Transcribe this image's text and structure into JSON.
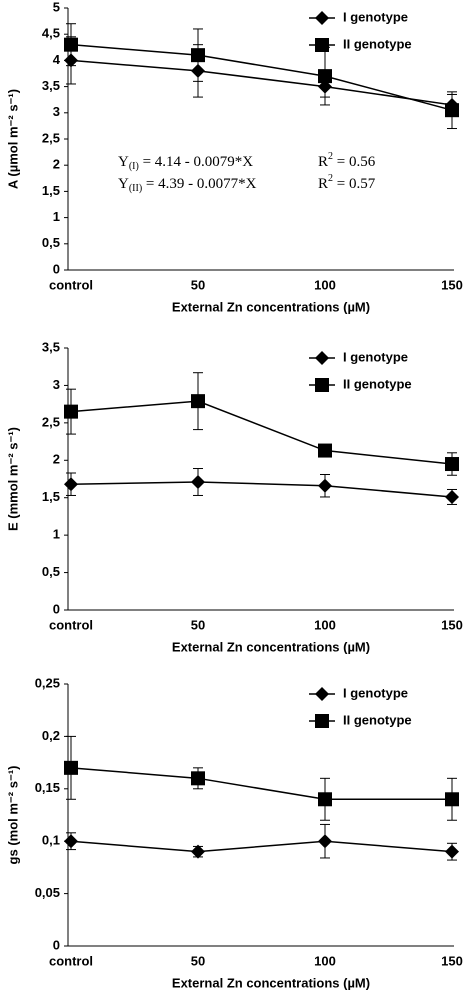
{
  "chart_data": [
    {
      "type": "line",
      "ylabel": "A (µmol m⁻² s⁻¹)",
      "xlabel": "External Zn concentrations (µM)",
      "categories": [
        "control",
        "50",
        "100",
        "150"
      ],
      "ylim": [
        0,
        5
      ],
      "yticks": [
        0,
        {
          "value": 0.5,
          "label": "0,5"
        },
        1,
        {
          "value": 1.5,
          "label": "1,5"
        },
        2,
        {
          "value": 2.5,
          "label": "2,5"
        },
        3,
        {
          "value": 3.5,
          "label": "3,5"
        },
        4,
        {
          "value": 4.5,
          "label": "4,5"
        },
        5
      ],
      "legend": "upper right",
      "series": [
        {
          "name": "I genotype",
          "color": "#000000",
          "marker": "diamond",
          "values": [
            4.0,
            3.8,
            3.5,
            3.15
          ],
          "errors": [
            0.45,
            0.5,
            0.2,
            0.2
          ]
        },
        {
          "name": "II genotype",
          "color": "#000000",
          "marker": "square",
          "values": [
            4.3,
            4.1,
            3.7,
            3.05
          ],
          "errors": [
            0.4,
            0.5,
            0.55,
            0.35
          ]
        }
      ],
      "annotations": [
        [
          {
            "text": "Y"
          },
          {
            "text": "(I)",
            "sub": true
          },
          {
            "text": " = 4.14 - 0.0079*X"
          }
        ],
        [
          {
            "text": "Y"
          },
          {
            "text": "(II)",
            "sub": true
          },
          {
            "text": " = 4.39 - 0.0077*X"
          }
        ],
        [
          {
            "text": "R"
          },
          {
            "text": "2",
            "sup": true
          },
          {
            "text": " = 0.56"
          }
        ],
        [
          {
            "text": "R"
          },
          {
            "text": "2",
            "sup": true
          },
          {
            "text": " = 0.57"
          }
        ]
      ]
    },
    {
      "type": "line",
      "ylabel": "E (mmol m⁻² s⁻¹)",
      "xlabel": "External Zn concentrations (µM)",
      "categories": [
        "control",
        "50",
        "100",
        "150"
      ],
      "ylim": [
        0,
        3.5
      ],
      "yticks": [
        0,
        {
          "value": 0.5,
          "label": "0,5"
        },
        1,
        {
          "value": 1.5,
          "label": "1,5"
        },
        2,
        {
          "value": 2.5,
          "label": "2,5"
        },
        3,
        {
          "value": 3.5,
          "label": "3,5"
        }
      ],
      "legend": "upper right",
      "series": [
        {
          "name": "I genotype",
          "color": "#000000",
          "marker": "diamond",
          "values": [
            1.68,
            1.71,
            1.66,
            1.51
          ],
          "errors": [
            0.15,
            0.18,
            0.15,
            0.1
          ]
        },
        {
          "name": "II genotype",
          "color": "#000000",
          "marker": "square",
          "values": [
            2.65,
            2.79,
            2.13,
            1.95
          ],
          "errors": [
            0.3,
            0.38,
            0.07,
            0.15
          ]
        }
      ]
    },
    {
      "type": "line",
      "ylabel": "gs (mol m⁻² s⁻¹)",
      "xlabel": "External Zn concentrations (µM)",
      "categories": [
        "control",
        "50",
        "100",
        "150"
      ],
      "ylim": [
        0,
        0.25
      ],
      "yticks": [
        0,
        {
          "value": 0.05,
          "label": "0,05"
        },
        {
          "value": 0.1,
          "label": "0,1"
        },
        {
          "value": 0.15,
          "label": "0,15"
        },
        {
          "value": 0.2,
          "label": "0,2"
        },
        {
          "value": 0.25,
          "label": "0,25"
        }
      ],
      "legend": "upper right",
      "series": [
        {
          "name": "I genotype",
          "color": "#000000",
          "marker": "diamond",
          "values": [
            0.1,
            0.09,
            0.1,
            0.09
          ],
          "errors": [
            0.008,
            0.005,
            0.016,
            0.008
          ]
        },
        {
          "name": "II genotype",
          "color": "#000000",
          "marker": "square",
          "values": [
            0.17,
            0.16,
            0.14,
            0.14
          ],
          "errors": [
            0.03,
            0.01,
            0.02,
            0.02
          ]
        }
      ]
    }
  ]
}
